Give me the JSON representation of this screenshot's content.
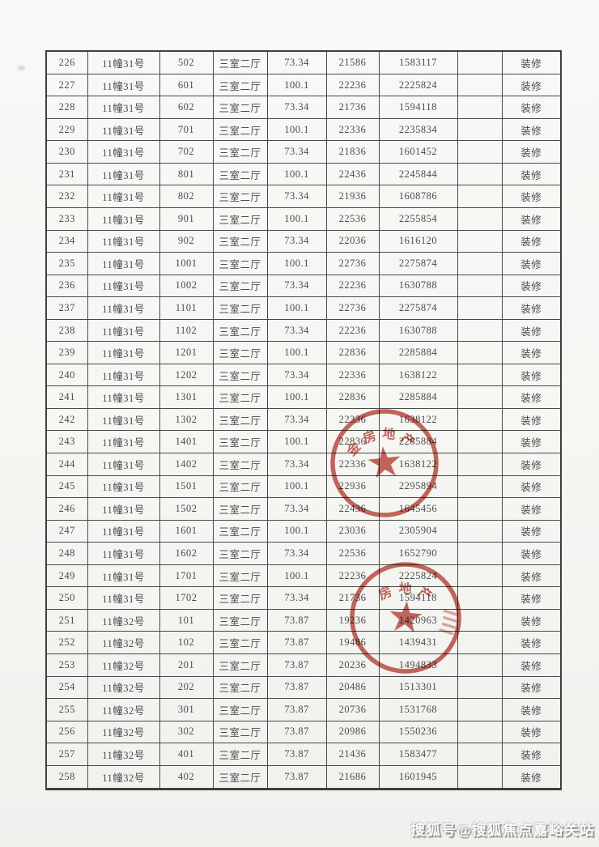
{
  "page": {
    "watermark": "搜狐号@搜狐焦点嘉峪关站"
  },
  "table": {
    "column_keys": [
      "seq",
      "building",
      "room",
      "layout",
      "area",
      "unit_price",
      "total_price",
      "blank",
      "note"
    ],
    "rows": [
      [
        "226",
        "11幢31号",
        "502",
        "三室二厅",
        "73.34",
        "21586",
        "1583117",
        "",
        "装修"
      ],
      [
        "227",
        "11幢31号",
        "601",
        "三室二厅",
        "100.1",
        "22236",
        "2225824",
        "",
        "装修"
      ],
      [
        "228",
        "11幢31号",
        "602",
        "三室二厅",
        "73.34",
        "21736",
        "1594118",
        "",
        "装修"
      ],
      [
        "229",
        "11幢31号",
        "701",
        "三室二厅",
        "100.1",
        "22336",
        "2235834",
        "",
        "装修"
      ],
      [
        "230",
        "11幢31号",
        "702",
        "三室二厅",
        "73.34",
        "21836",
        "1601452",
        "",
        "装修"
      ],
      [
        "231",
        "11幢31号",
        "801",
        "三室二厅",
        "100.1",
        "22436",
        "2245844",
        "",
        "装修"
      ],
      [
        "232",
        "11幢31号",
        "802",
        "三室二厅",
        "73.34",
        "21936",
        "1608786",
        "",
        "装修"
      ],
      [
        "233",
        "11幢31号",
        "901",
        "三室二厅",
        "100.1",
        "22536",
        "2255854",
        "",
        "装修"
      ],
      [
        "234",
        "11幢31号",
        "902",
        "三室二厅",
        "73.34",
        "22036",
        "1616120",
        "",
        "装修"
      ],
      [
        "235",
        "11幢31号",
        "1001",
        "三室二厅",
        "100.1",
        "22736",
        "2275874",
        "",
        "装修"
      ],
      [
        "236",
        "11幢31号",
        "1002",
        "三室二厅",
        "73.34",
        "22236",
        "1630788",
        "",
        "装修"
      ],
      [
        "237",
        "11幢31号",
        "1101",
        "三室二厅",
        "100.1",
        "22736",
        "2275874",
        "",
        "装修"
      ],
      [
        "238",
        "11幢31号",
        "1102",
        "三室二厅",
        "73.34",
        "22236",
        "1630788",
        "",
        "装修"
      ],
      [
        "239",
        "11幢31号",
        "1201",
        "三室二厅",
        "100.1",
        "22836",
        "2285884",
        "",
        "装修"
      ],
      [
        "240",
        "11幢31号",
        "1202",
        "三室二厅",
        "73.34",
        "22336",
        "1638122",
        "",
        "装修"
      ],
      [
        "241",
        "11幢31号",
        "1301",
        "三室二厅",
        "100.1",
        "22836",
        "2285884",
        "",
        "装修"
      ],
      [
        "242",
        "11幢31号",
        "1302",
        "三室二厅",
        "73.34",
        "22336",
        "1638122",
        "",
        "装修"
      ],
      [
        "243",
        "11幢31号",
        "1401",
        "三室二厅",
        "100.1",
        "22836",
        "2285884",
        "",
        "装修"
      ],
      [
        "244",
        "11幢31号",
        "1402",
        "三室二厅",
        "73.34",
        "22336",
        "1638122",
        "",
        "装修"
      ],
      [
        "245",
        "11幢31号",
        "1501",
        "三室二厅",
        "100.1",
        "22936",
        "2295894",
        "",
        "装修"
      ],
      [
        "246",
        "11幢31号",
        "1502",
        "三室二厅",
        "73.34",
        "22436",
        "1645456",
        "",
        "装修"
      ],
      [
        "247",
        "11幢31号",
        "1601",
        "三室二厅",
        "100.1",
        "23036",
        "2305904",
        "",
        "装修"
      ],
      [
        "248",
        "11幢31号",
        "1602",
        "三室二厅",
        "73.34",
        "22536",
        "1652790",
        "",
        "装修"
      ],
      [
        "249",
        "11幢31号",
        "1701",
        "三室二厅",
        "100.1",
        "22236",
        "2225824",
        "",
        "装修"
      ],
      [
        "250",
        "11幢31号",
        "1702",
        "三室二厅",
        "73.34",
        "21736",
        "1594118",
        "",
        "装修"
      ],
      [
        "251",
        "11幢32号",
        "101",
        "三室二厅",
        "73.87",
        "19236",
        "1420963",
        "",
        "装修"
      ],
      [
        "252",
        "11幢32号",
        "102",
        "三室二厅",
        "73.87",
        "19486",
        "1439431",
        "",
        "装修"
      ],
      [
        "253",
        "11幢32号",
        "201",
        "三室二厅",
        "73.87",
        "20236",
        "1494833",
        "",
        "装修"
      ],
      [
        "254",
        "11幢32号",
        "202",
        "三室二厅",
        "73.87",
        "20486",
        "1513301",
        "",
        "装修"
      ],
      [
        "255",
        "11幢32号",
        "301",
        "三室二厅",
        "73.87",
        "20736",
        "1531768",
        "",
        "装修"
      ],
      [
        "256",
        "11幢32号",
        "302",
        "三室二厅",
        "73.87",
        "20986",
        "1550236",
        "",
        "装修"
      ],
      [
        "257",
        "11幢32号",
        "401",
        "三室二厅",
        "73.87",
        "21436",
        "1583477",
        "",
        "装修"
      ],
      [
        "258",
        "11幢32号",
        "402",
        "三室二厅",
        "73.87",
        "21686",
        "1601945",
        "",
        "装修"
      ]
    ]
  },
  "stamps": [
    {
      "arc_text": "金房地产",
      "color": "#bf463c"
    },
    {
      "arc_text": "房地产",
      "color": "#bf463c"
    }
  ]
}
